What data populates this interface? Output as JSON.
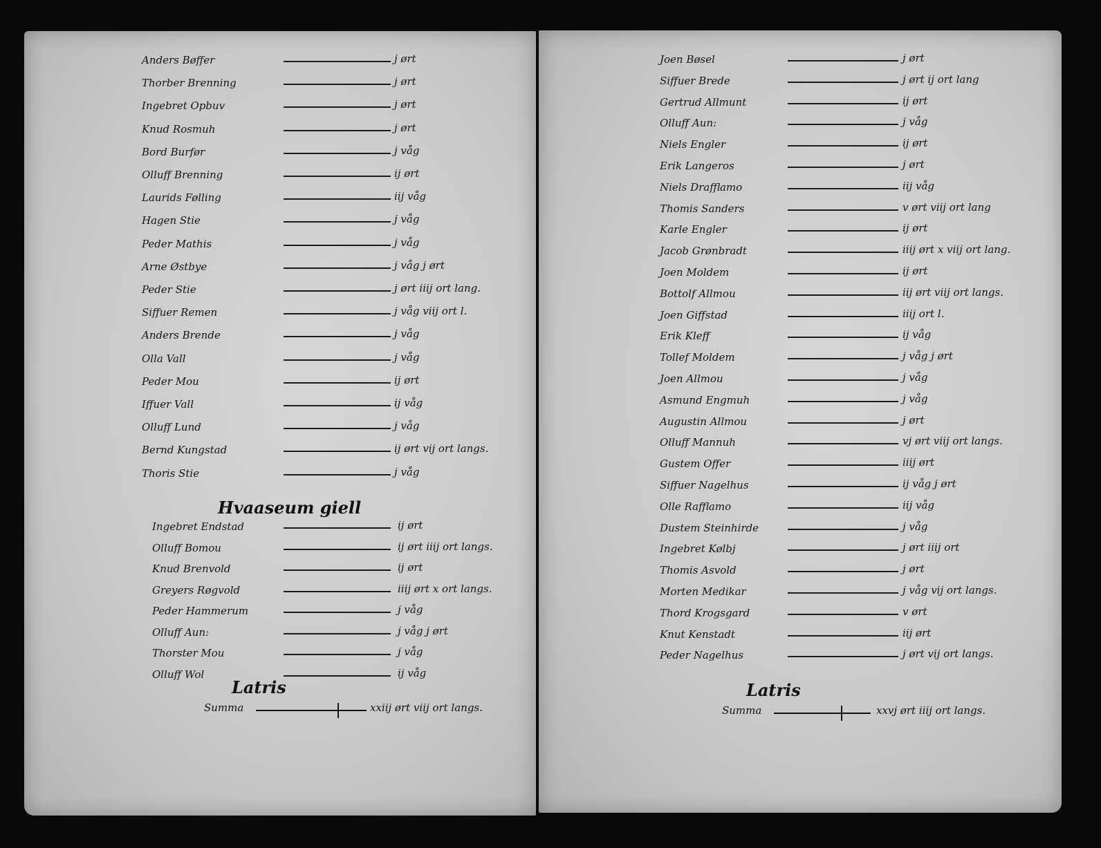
{
  "left_page": {
    "entries_before_heading": [
      {
        "name": "Anders Bøffer",
        "amount": "j ørt"
      },
      {
        "name": "Thorber Brenning",
        "amount": "j ørt"
      },
      {
        "name": "Ingebret Opbuv",
        "amount": "j ørt"
      },
      {
        "name": "Knud Rosmuh",
        "amount": "j ørt"
      },
      {
        "name": "Bord Burfør",
        "amount": "j våg"
      },
      {
        "name": "Olluff Brenning",
        "amount": "ij ørt"
      },
      {
        "name": "Laurids Følling",
        "amount": "iij våg"
      },
      {
        "name": "Hagen Stie",
        "amount": "j våg"
      },
      {
        "name": "Peder Mathis",
        "amount": "j våg"
      },
      {
        "name": "Arne Østbye",
        "amount": "j våg j ørt"
      },
      {
        "name": "Peder Stie",
        "amount": "j ørt iiij ort lang."
      },
      {
        "name": "Siffuer Remen",
        "amount": "j våg viij ort l."
      },
      {
        "name": "Anders Brende",
        "amount": "j våg"
      },
      {
        "name": "Olla Vall",
        "amount": "j våg"
      },
      {
        "name": "Peder Mou",
        "amount": "ij ørt"
      },
      {
        "name": "Iffuer Vall",
        "amount": "ij våg"
      },
      {
        "name": "Olluff Lund",
        "amount": "j våg"
      },
      {
        "name": "Bernd Kungstad",
        "amount": "ij ørt vij ort langs."
      },
      {
        "name": "Thoris Stie",
        "amount": "j våg"
      }
    ],
    "heading": "Hvaaseum giell",
    "entries_after_heading": [
      {
        "name": "Ingebret Endstad",
        "amount": "ij ørt"
      },
      {
        "name": "Olluff Bomou",
        "amount": "ij ørt iiij ort langs."
      },
      {
        "name": "Knud Brenvold",
        "amount": "ij ørt"
      },
      {
        "name": "Greyers Røgvold",
        "amount": "iiij ørt x ort langs."
      },
      {
        "name": "Peder Hammerum",
        "amount": "j våg"
      },
      {
        "name": "Olluff Aun:",
        "amount": "j våg j ørt"
      },
      {
        "name": "Thorster Mou",
        "amount": "j våg"
      },
      {
        "name": "Olluff Wol",
        "amount": "ij våg"
      }
    ],
    "latris": "Latris",
    "summa_label": "Summa",
    "summa_amount": "xxiij ørt viij ort langs."
  },
  "right_page": {
    "entries": [
      {
        "name": "Joen Bøsel",
        "amount": "j ørt"
      },
      {
        "name": "Siffuer Brede",
        "amount": "j ørt ij ort lang"
      },
      {
        "name": "Gertrud Allmunt",
        "amount": "ij ørt"
      },
      {
        "name": "Olluff Aun:",
        "amount": "j våg"
      },
      {
        "name": "Niels Engler",
        "amount": "ij ørt"
      },
      {
        "name": "Erik Langeros",
        "amount": "j ørt"
      },
      {
        "name": "Niels Drafflamo",
        "amount": "iij våg"
      },
      {
        "name": "Thomis Sanders",
        "amount": "v ørt viij ort lang"
      },
      {
        "name": "Karle Engler",
        "amount": "ij ørt"
      },
      {
        "name": "Jacob Grønbradt",
        "amount": "iiij ørt x viij ort lang."
      },
      {
        "name": "Joen Moldem",
        "amount": "ij ørt"
      },
      {
        "name": "Bottolf Allmou",
        "amount": "iij ørt viij ort langs."
      },
      {
        "name": "Joen Giffstad",
        "amount": "iiij ort l."
      },
      {
        "name": "Erik Kleff",
        "amount": "ij våg"
      },
      {
        "name": "Tollef Moldem",
        "amount": "j våg j ørt"
      },
      {
        "name": "Joen Allmou",
        "amount": "j våg"
      },
      {
        "name": "Asmund Engmuh",
        "amount": "j våg"
      },
      {
        "name": "Augustin Allmou",
        "amount": "j ørt"
      },
      {
        "name": "Olluff Mannuh",
        "amount": "vj ørt viij ort langs."
      },
      {
        "name": "Gustem Offer",
        "amount": "iiij ørt"
      },
      {
        "name": "Siffuer Nagelhus",
        "amount": "ij våg j ørt"
      },
      {
        "name": "Olle Rafflamo",
        "amount": "iij våg"
      },
      {
        "name": "Dustem Steinhirde",
        "amount": "j våg"
      },
      {
        "name": "Ingebret Kølbj",
        "amount": "j ørt iiij ort"
      },
      {
        "name": "Thomis Asvold",
        "amount": "j ørt"
      },
      {
        "name": "Morten Medikar",
        "amount": "j våg vij ort langs."
      },
      {
        "name": "Thord Krogsgard",
        "amount": "v ørt"
      },
      {
        "name": "Knut Kenstadt",
        "amount": "iij ørt"
      },
      {
        "name": "Peder Nagelhus",
        "amount": "j ørt vij ort langs."
      }
    ],
    "latris": "Latris",
    "summa_label": "Summa",
    "summa_amount": "xxvj ørt iiij ort langs."
  },
  "colors": {
    "background": "#0a0a0a",
    "paper": "#c9c9c9",
    "ink": "#141414"
  }
}
